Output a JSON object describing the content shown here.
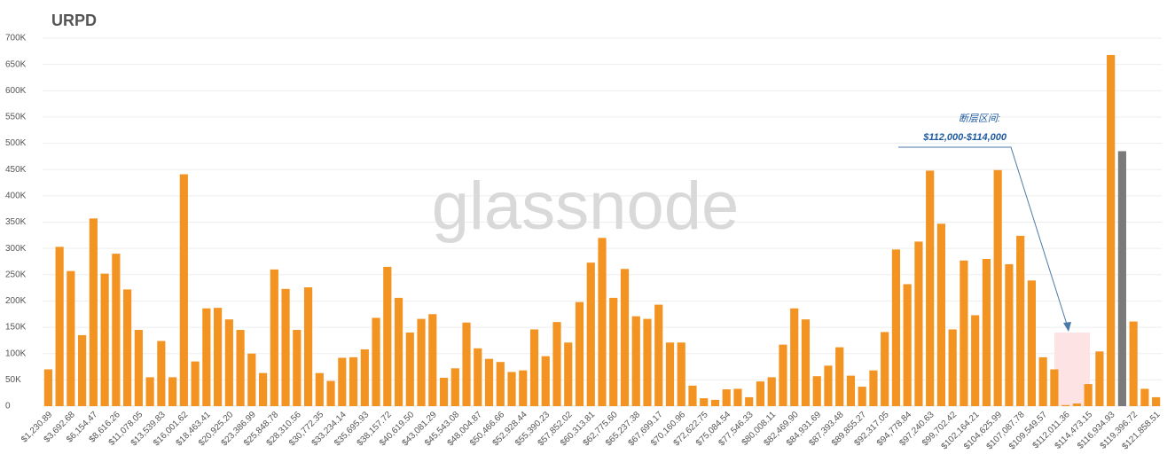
{
  "chart_data": {
    "type": "bar",
    "title": "URPD",
    "watermark": "glassnode",
    "annotation": {
      "title": "断层区间:",
      "text": "$112,000-$114,000"
    },
    "categories": [
      "$1,230.89",
      null,
      "$3,692.68",
      null,
      "$6,154.47",
      null,
      "$8,616.26",
      null,
      "$11,078.05",
      null,
      "$13,539.83",
      null,
      "$16,001.62",
      null,
      "$18,463.41",
      null,
      "$20,925.20",
      null,
      "$23,386.99",
      null,
      "$25,848.78",
      null,
      "$28,310.56",
      null,
      "$30,772.35",
      null,
      "$33,234.14",
      null,
      "$35,695.93",
      null,
      "$38,157.72",
      null,
      "$40,619.50",
      null,
      "$43,081.29",
      null,
      "$45,543.08",
      null,
      "$48,004.87",
      null,
      "$50,466.66",
      null,
      "$52,928.44",
      null,
      "$55,390.23",
      null,
      "$57,852.02",
      null,
      "$60,313.81",
      null,
      "$62,775.60",
      null,
      "$65,237.38",
      null,
      "$67,699.17",
      null,
      "$70,160.96",
      null,
      "$72,622.75",
      null,
      "$75,084.54",
      null,
      "$77,546.33",
      null,
      "$80,008.11",
      null,
      "$82,469.90",
      null,
      "$84,931.69",
      null,
      "$87,393.48",
      null,
      "$89,855.27",
      null,
      "$92,317.05",
      null,
      "$94,778.84",
      null,
      "$97,240.63",
      null,
      "$99,702.42",
      null,
      "$102,164.21",
      null,
      "$104,625.99",
      null,
      "$107,087.78",
      null,
      "$109,549.57",
      null,
      "$112,011.36",
      null,
      "$114,473.15",
      null,
      "$116,934.93",
      null,
      "$119,396.72",
      null,
      "$121,858.51"
    ],
    "values": [
      70000,
      303000,
      257000,
      135000,
      357000,
      252000,
      290000,
      222000,
      145000,
      55000,
      124000,
      55000,
      441000,
      85000,
      186000,
      187000,
      165000,
      145000,
      100000,
      63000,
      260000,
      223000,
      145000,
      226000,
      63000,
      48000,
      92000,
      93000,
      108000,
      168000,
      265000,
      206000,
      140000,
      166000,
      175000,
      54000,
      72000,
      159000,
      110000,
      90000,
      84000,
      65000,
      68000,
      146000,
      95000,
      160000,
      121000,
      198000,
      273000,
      320000,
      206000,
      261000,
      171000,
      166000,
      193000,
      121000,
      121000,
      39000,
      15000,
      12000,
      32000,
      33000,
      17000,
      47000,
      55000,
      117000,
      186000,
      165000,
      57000,
      77000,
      112000,
      58000,
      37000,
      68000,
      141000,
      298000,
      232000,
      313000,
      448000,
      347000,
      146000,
      277000,
      173000,
      280000,
      449000,
      270000,
      324000,
      239000,
      93000,
      70000,
      2000,
      5000,
      42000,
      104000,
      668000,
      485000,
      161000,
      33000,
      17000
    ],
    "color": "#f39322",
    "highlight_index": 95,
    "highlight_color": "#7a7a7a",
    "ylim": [
      0,
      700000
    ],
    "yticks": [
      0,
      {
        "value": 50000,
        "label": "50K"
      },
      {
        "value": 100000,
        "label": "100K"
      },
      {
        "value": 150000,
        "label": "150K"
      },
      {
        "value": 200000,
        "label": "200K"
      },
      {
        "value": 250000,
        "label": "250K"
      },
      {
        "value": 300000,
        "label": "300K"
      },
      {
        "value": 350000,
        "label": "350K"
      },
      {
        "value": 400000,
        "label": "400K"
      },
      {
        "value": 450000,
        "label": "450K"
      },
      {
        "value": 500000,
        "label": "500K"
      },
      {
        "value": 550000,
        "label": "550K"
      },
      {
        "value": 600000,
        "label": "600K"
      },
      {
        "value": 650000,
        "label": "650K"
      },
      {
        "value": 700000,
        "label": "700K"
      }
    ],
    "grid": true
  }
}
